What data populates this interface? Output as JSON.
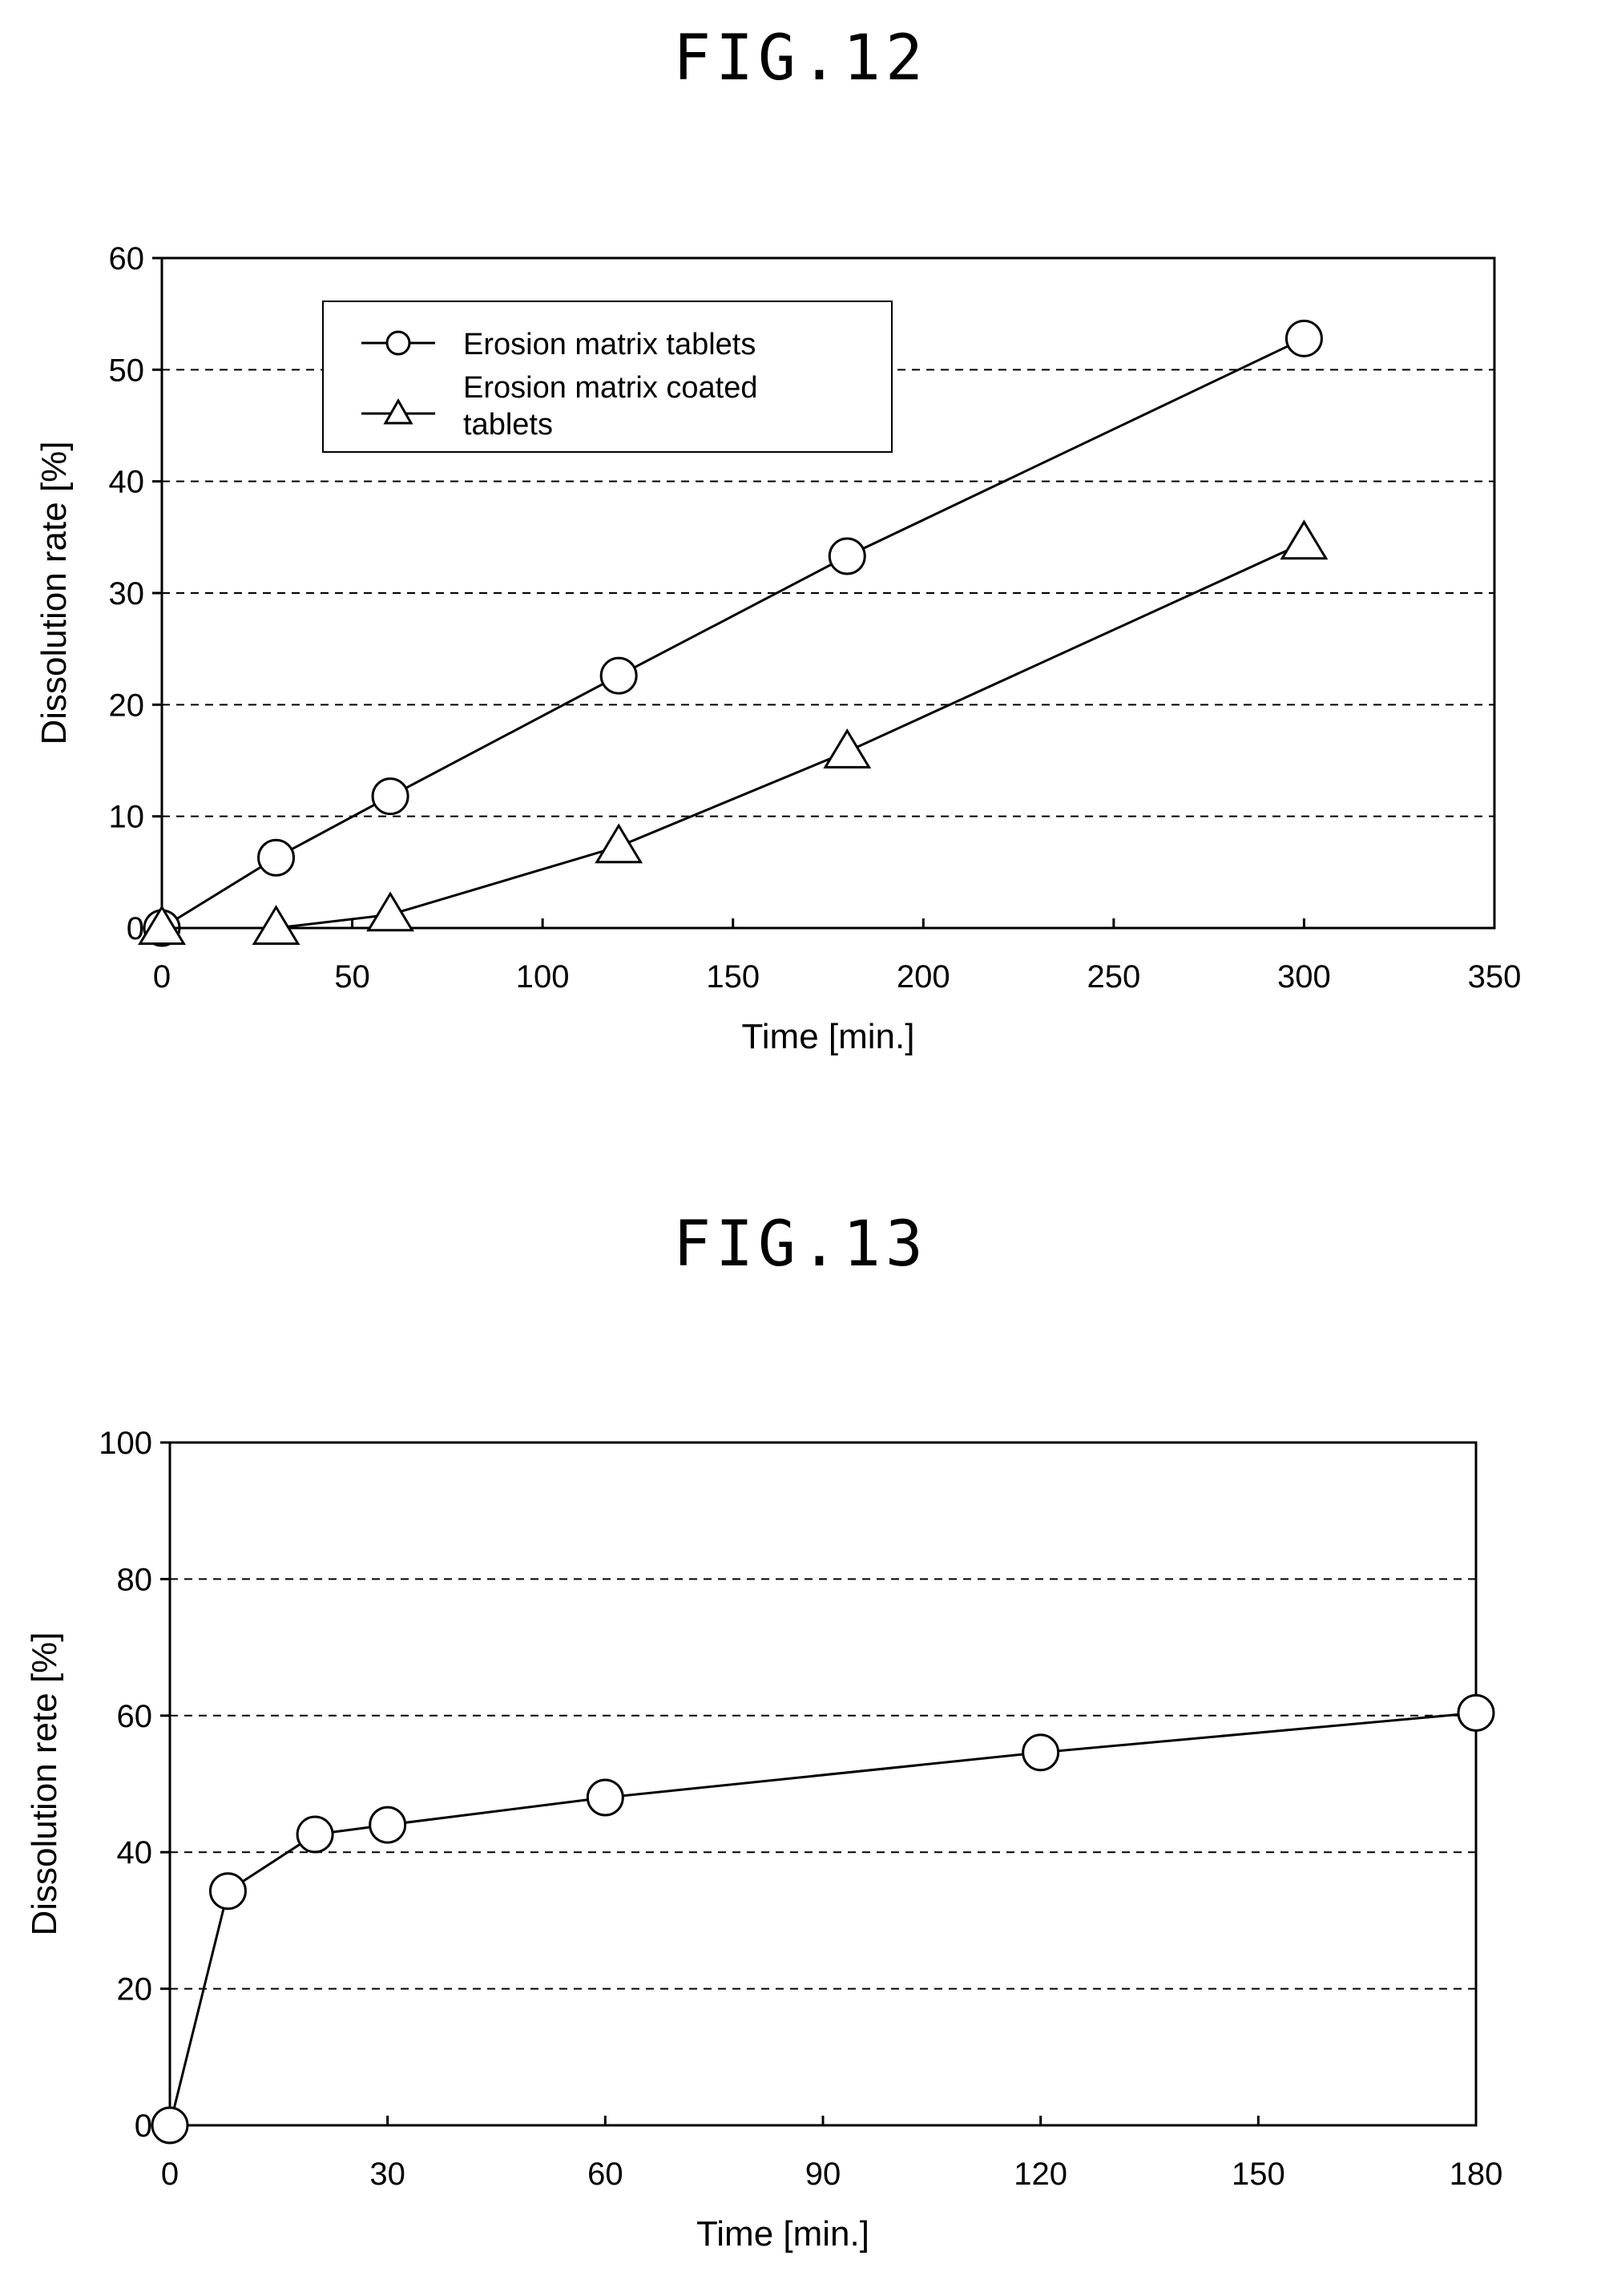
{
  "figures": {
    "fig12_title": "FIG.12",
    "fig13_title": "FIG.13"
  },
  "chart_data": [
    {
      "type": "line",
      "title": "FIG.12",
      "xlabel": "Time [min.]",
      "ylabel": "Dissolution rate [%]",
      "xlim": [
        0,
        350
      ],
      "ylim": [
        0,
        60
      ],
      "xticks": [
        0,
        50,
        100,
        150,
        200,
        250,
        300,
        350
      ],
      "yticks": [
        0,
        10,
        20,
        30,
        40,
        50,
        60
      ],
      "grid": "horizontal-dashed",
      "legend_position": "top-left",
      "series": [
        {
          "name": "Erosion matrix tablets",
          "marker": "circle",
          "x": [
            0,
            30,
            60,
            120,
            180,
            300
          ],
          "y": [
            0,
            6.3,
            11.8,
            22.6,
            33.3,
            52.8
          ]
        },
        {
          "name": "Erosion matrix coated tablets",
          "marker": "triangle",
          "x": [
            0,
            30,
            60,
            120,
            180,
            300
          ],
          "y": [
            0,
            0,
            1.2,
            7.3,
            15.8,
            34.5
          ]
        }
      ]
    },
    {
      "type": "line",
      "title": "FIG.13",
      "xlabel": "Time [min.]",
      "ylabel": "Dissolution rete [%]",
      "xlim": [
        0,
        180
      ],
      "ylim": [
        0,
        100
      ],
      "xticks": [
        0,
        30,
        60,
        90,
        120,
        150,
        180
      ],
      "yticks": [
        0,
        20,
        40,
        60,
        80,
        100
      ],
      "grid": "horizontal-dashed",
      "series": [
        {
          "marker": "circle",
          "x": [
            0,
            8,
            20,
            30,
            60,
            120,
            180
          ],
          "y": [
            0,
            34.3,
            42.6,
            44.0,
            48.0,
            54.6,
            60.4
          ]
        }
      ]
    }
  ]
}
